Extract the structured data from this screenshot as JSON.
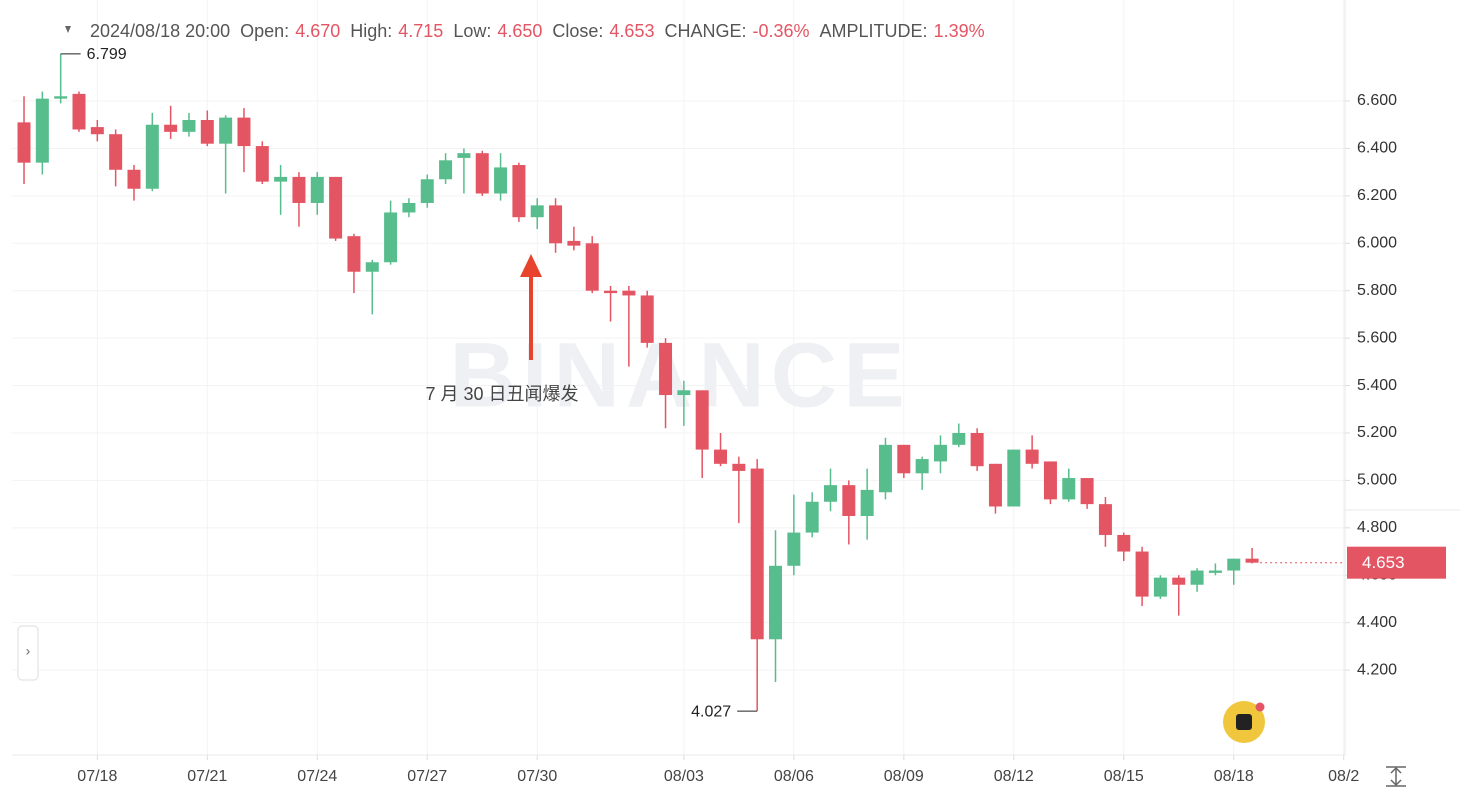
{
  "chart_data": {
    "type": "candlestick",
    "header": {
      "time": "2024/08/18 20:00",
      "fields": [
        {
          "label": "Open:",
          "text": "4.670"
        },
        {
          "label": "High:",
          "text": "4.715"
        },
        {
          "label": "Low:",
          "text": "4.650"
        },
        {
          "label": "Close:",
          "text": "4.653"
        },
        {
          "label": "CHANGE:",
          "text": "-0.36%"
        },
        {
          "label": "AMPLITUDE:",
          "text": "1.39%"
        }
      ]
    },
    "annotation": "7 月 30 日丑闻爆发",
    "watermark": "BINANCE",
    "up_color": "#58bd8c",
    "down_color": "#e45563",
    "xlim": [
      -1.31,
      72.07
    ],
    "xticks": [
      {
        "value": 4,
        "label": "07/18"
      },
      {
        "value": 10,
        "label": "07/21"
      },
      {
        "value": 16,
        "label": "07/24"
      },
      {
        "value": 22,
        "label": "07/27"
      },
      {
        "value": 28,
        "label": "07/30"
      },
      {
        "value": 36,
        "label": "08/03"
      },
      {
        "value": 42,
        "label": "08/06"
      },
      {
        "value": 48,
        "label": "08/09"
      },
      {
        "value": 54,
        "label": "08/12"
      },
      {
        "value": 60,
        "label": "08/15"
      },
      {
        "value": 66,
        "label": "08/18"
      },
      {
        "value": 72,
        "label": "08/2"
      }
    ],
    "ylim": [
      3.842,
      7.026
    ],
    "yticks": [
      {
        "value": 4.2,
        "label": "4.200"
      },
      {
        "value": 4.4,
        "label": "4.400"
      },
      {
        "value": 4.6,
        "label": "4.600"
      },
      {
        "value": 4.8,
        "label": "4.800"
      },
      {
        "value": 5.0,
        "label": "5.000"
      },
      {
        "value": 5.2,
        "label": "5.200"
      },
      {
        "value": 5.4,
        "label": "5.400"
      },
      {
        "value": 5.6,
        "label": "5.600"
      },
      {
        "value": 5.8,
        "label": "5.800"
      },
      {
        "value": 6.0,
        "label": "6.000"
      },
      {
        "value": 6.2,
        "label": "6.200"
      },
      {
        "value": 6.4,
        "label": "6.400"
      },
      {
        "value": 6.6,
        "label": "6.600"
      }
    ],
    "grid": true,
    "open": [
      6.51,
      6.34,
      6.61,
      6.63,
      6.49,
      6.46,
      6.31,
      6.23,
      6.5,
      6.47,
      6.52,
      6.42,
      6.53,
      6.41,
      6.26,
      6.28,
      6.17,
      6.28,
      6.03,
      5.88,
      5.92,
      6.13,
      6.17,
      6.27,
      6.36,
      6.38,
      6.21,
      6.33,
      6.11,
      6.16,
      6.01,
      6.0,
      5.8,
      5.8,
      5.78,
      5.58,
      5.36,
      5.38,
      5.13,
      5.07,
      5.05,
      4.33,
      4.64,
      4.78,
      4.91,
      4.98,
      4.85,
      4.95,
      5.15,
      5.03,
      5.08,
      5.15,
      5.2,
      5.07,
      4.89,
      5.13,
      5.08,
      4.92,
      5.01,
      4.9,
      4.77,
      4.7,
      4.51,
      4.59,
      4.56,
      4.61,
      4.62,
      4.67
    ],
    "high": [
      6.62,
      6.64,
      6.799,
      6.64,
      6.52,
      6.48,
      6.33,
      6.55,
      6.58,
      6.55,
      6.56,
      6.54,
      6.57,
      6.43,
      6.33,
      6.3,
      6.3,
      6.28,
      6.04,
      5.93,
      6.18,
      6.19,
      6.29,
      6.38,
      6.4,
      6.39,
      6.38,
      6.34,
      6.19,
      6.19,
      6.07,
      6.03,
      5.82,
      5.82,
      5.8,
      5.6,
      5.42,
      5.38,
      5.2,
      5.1,
      5.09,
      4.79,
      4.94,
      4.95,
      5.05,
      5.0,
      5.05,
      5.18,
      5.15,
      5.1,
      5.19,
      5.24,
      5.22,
      5.07,
      5.13,
      5.19,
      5.08,
      5.05,
      5.01,
      4.93,
      4.78,
      4.72,
      4.6,
      4.6,
      4.63,
      4.65,
      4.67,
      4.715
    ],
    "low": [
      6.25,
      6.29,
      6.59,
      6.47,
      6.43,
      6.24,
      6.18,
      6.22,
      6.44,
      6.45,
      6.41,
      6.21,
      6.3,
      6.25,
      6.12,
      6.07,
      6.12,
      6.01,
      5.79,
      5.7,
      5.91,
      6.11,
      6.15,
      6.25,
      6.21,
      6.2,
      6.18,
      6.09,
      6.06,
      5.96,
      5.97,
      5.79,
      5.67,
      5.48,
      5.56,
      5.22,
      5.23,
      5.01,
      5.06,
      4.82,
      4.027,
      4.15,
      4.6,
      4.76,
      4.87,
      4.73,
      4.75,
      4.92,
      5.01,
      4.96,
      5.03,
      5.14,
      5.04,
      4.86,
      4.89,
      5.05,
      4.9,
      4.91,
      4.88,
      4.72,
      4.66,
      4.47,
      4.5,
      4.43,
      4.53,
      4.6,
      4.56,
      4.65
    ],
    "close": [
      6.34,
      6.61,
      6.62,
      6.48,
      6.46,
      6.31,
      6.23,
      6.5,
      6.47,
      6.52,
      6.42,
      6.53,
      6.41,
      6.26,
      6.28,
      6.17,
      6.28,
      6.02,
      5.88,
      5.92,
      6.13,
      6.17,
      6.27,
      6.35,
      6.38,
      6.21,
      6.32,
      6.11,
      6.16,
      6.0,
      5.99,
      5.8,
      5.79,
      5.78,
      5.58,
      5.36,
      5.38,
      5.13,
      5.07,
      5.04,
      4.33,
      4.64,
      4.78,
      4.91,
      4.98,
      4.85,
      4.96,
      5.15,
      5.03,
      5.09,
      5.15,
      5.2,
      5.06,
      4.89,
      5.13,
      5.07,
      4.92,
      5.01,
      4.9,
      4.77,
      4.7,
      4.51,
      4.59,
      4.56,
      4.62,
      4.62,
      4.67,
      4.653
    ]
  }
}
